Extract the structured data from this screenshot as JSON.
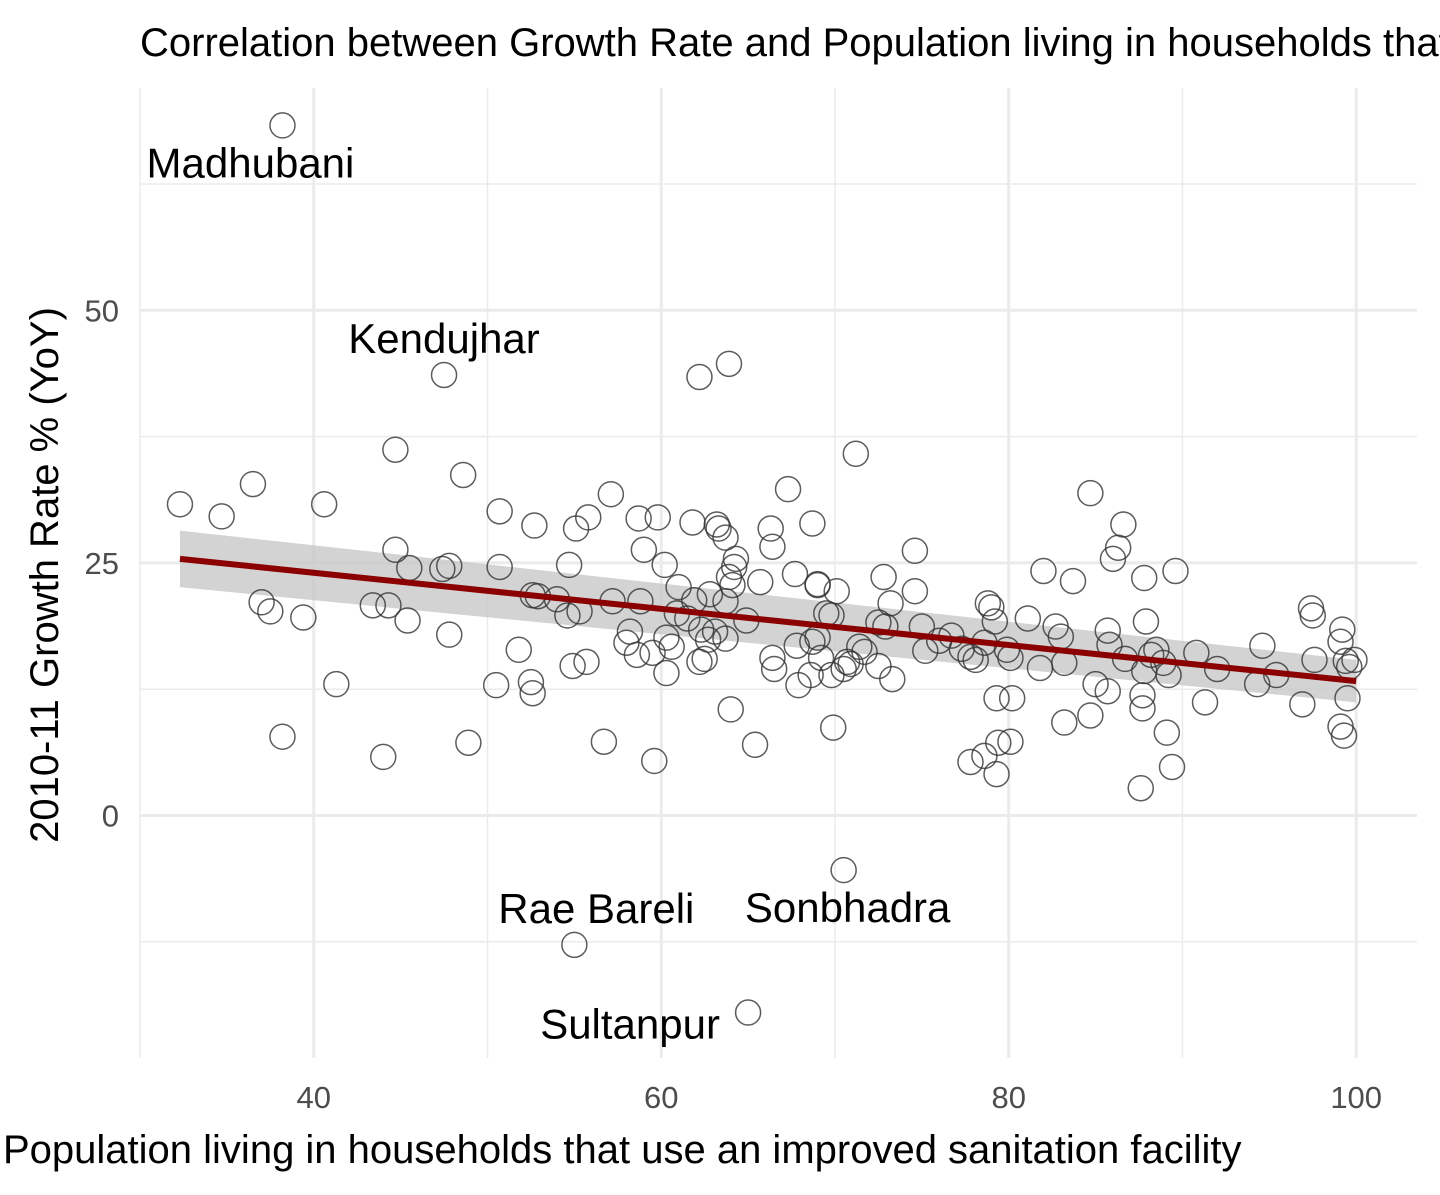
{
  "chart_data": {
    "type": "scatter",
    "title": "Correlation between Growth Rate and Population living in households that use an improved sanitation facility",
    "xlabel": "Population living in households that use an improved sanitation facility",
    "ylabel": "2010-11 Growth Rate % (YoY)",
    "xlim": [
      30,
      103.5
    ],
    "ylim": [
      -24,
      72
    ],
    "x_ticks": [
      "40",
      "60",
      "80",
      "100"
    ],
    "y_ticks": [
      "0",
      "25",
      "50"
    ],
    "x_tick_values": [
      40,
      60,
      80,
      100
    ],
    "y_tick_values": [
      0,
      25,
      50
    ],
    "grid": true,
    "trend": {
      "method": "linear fit with confidence band",
      "color": "#8b0000",
      "band_color": "#c8c8c8",
      "x": [
        32.3,
        100
      ],
      "y": [
        25.4,
        13.3
      ],
      "band_lower": [
        22.6,
        11.2
      ],
      "band_upper": [
        28.2,
        15.4
      ]
    },
    "point_style": {
      "marker": "open circle",
      "color": "#333333"
    },
    "labels": [
      {
        "text": "Madhubani",
        "x": 38.2,
        "y": 68.3
      },
      {
        "text": "Kendujhar",
        "x": 47.5,
        "y": 43.6
      },
      {
        "text": "Rae Bareli",
        "x": 55.0,
        "y": -12.8
      },
      {
        "text": "Sonbhadra",
        "x": 70.5,
        "y": -5.4
      },
      {
        "text": "Sultanpur",
        "x": 65.0,
        "y": -19.5
      }
    ],
    "points": [
      [
        38.2,
        68.3
      ],
      [
        47.5,
        43.6
      ],
      [
        62.2,
        43.4
      ],
      [
        63.9,
        44.7
      ],
      [
        44.7,
        36.2
      ],
      [
        48.6,
        33.7
      ],
      [
        71.2,
        35.8
      ],
      [
        32.3,
        30.8
      ],
      [
        34.7,
        29.6
      ],
      [
        36.5,
        32.8
      ],
      [
        40.6,
        30.8
      ],
      [
        50.7,
        30.1
      ],
      [
        52.7,
        28.7
      ],
      [
        57.1,
        31.8
      ],
      [
        55.8,
        29.5
      ],
      [
        58.7,
        29.4
      ],
      [
        59.8,
        29.5
      ],
      [
        61.8,
        29.0
      ],
      [
        63.2,
        28.8
      ],
      [
        67.3,
        32.3
      ],
      [
        68.7,
        28.9
      ],
      [
        84.7,
        31.9
      ],
      [
        86.6,
        28.8
      ],
      [
        55.1,
        28.4
      ],
      [
        63.3,
        28.4
      ],
      [
        66.3,
        28.4
      ],
      [
        66.4,
        26.6
      ],
      [
        63.7,
        27.5
      ],
      [
        74.6,
        26.2
      ],
      [
        86.3,
        26.5
      ],
      [
        86.0,
        25.4
      ],
      [
        59.0,
        26.3
      ],
      [
        44.7,
        26.3
      ],
      [
        47.8,
        24.7
      ],
      [
        47.4,
        24.4
      ],
      [
        45.5,
        24.5
      ],
      [
        50.7,
        24.6
      ],
      [
        54.7,
        24.8
      ],
      [
        60.2,
        24.8
      ],
      [
        64.2,
        24.6
      ],
      [
        64.3,
        25.4
      ],
      [
        67.7,
        23.9
      ],
      [
        82.0,
        24.2
      ],
      [
        83.7,
        23.2
      ],
      [
        87.8,
        23.5
      ],
      [
        89.6,
        24.2
      ],
      [
        63.9,
        23.6
      ],
      [
        64.1,
        22.8
      ],
      [
        65.7,
        23.1
      ],
      [
        69.0,
        22.9
      ],
      [
        69.0,
        22.8
      ],
      [
        70.1,
        22.2
      ],
      [
        72.8,
        23.6
      ],
      [
        74.6,
        22.2
      ],
      [
        61.0,
        22.6
      ],
      [
        52.6,
        21.8
      ],
      [
        52.9,
        21.7
      ],
      [
        54.0,
        21.4
      ],
      [
        57.2,
        21.2
      ],
      [
        58.8,
        21.2
      ],
      [
        61.9,
        21.3
      ],
      [
        62.8,
        21.9
      ],
      [
        63.7,
        21.2
      ],
      [
        73.2,
        21.0
      ],
      [
        37.0,
        21.1
      ],
      [
        37.5,
        20.2
      ],
      [
        39.4,
        19.6
      ],
      [
        43.4,
        20.8
      ],
      [
        44.3,
        20.8
      ],
      [
        45.4,
        19.3
      ],
      [
        47.8,
        17.9
      ],
      [
        54.6,
        19.8
      ],
      [
        55.3,
        20.2
      ],
      [
        60.9,
        20.0
      ],
      [
        61.5,
        19.5
      ],
      [
        62.3,
        18.4
      ],
      [
        63.1,
        18.2
      ],
      [
        64.9,
        19.3
      ],
      [
        69.5,
        20.0
      ],
      [
        69.8,
        19.8
      ],
      [
        72.5,
        19.1
      ],
      [
        72.9,
        18.7
      ],
      [
        75.0,
        18.7
      ],
      [
        76.7,
        17.8
      ],
      [
        78.8,
        21.0
      ],
      [
        79.0,
        20.6
      ],
      [
        79.2,
        19.2
      ],
      [
        81.1,
        19.5
      ],
      [
        82.7,
        18.7
      ],
      [
        83.0,
        17.7
      ],
      [
        85.7,
        18.3
      ],
      [
        88.5,
        16.4
      ],
      [
        87.9,
        19.2
      ],
      [
        97.4,
        20.5
      ],
      [
        97.5,
        19.8
      ],
      [
        99.2,
        18.4
      ],
      [
        99.1,
        17.2
      ],
      [
        58.2,
        18.2
      ],
      [
        58.0,
        17.1
      ],
      [
        58.6,
        15.9
      ],
      [
        59.5,
        16.1
      ],
      [
        60.3,
        17.6
      ],
      [
        60.6,
        16.7
      ],
      [
        62.2,
        15.2
      ],
      [
        62.5,
        15.5
      ],
      [
        62.7,
        17.4
      ],
      [
        63.7,
        17.5
      ],
      [
        66.4,
        15.6
      ],
      [
        66.5,
        14.5
      ],
      [
        67.8,
        16.8
      ],
      [
        68.7,
        17.2
      ],
      [
        69.0,
        17.6
      ],
      [
        69.2,
        15.6
      ],
      [
        70.7,
        15.2
      ],
      [
        70.9,
        15.0
      ],
      [
        71.4,
        16.7
      ],
      [
        71.7,
        16.2
      ],
      [
        72.5,
        14.8
      ],
      [
        73.3,
        13.5
      ],
      [
        75.2,
        16.3
      ],
      [
        76.0,
        17.3
      ],
      [
        77.3,
        16.5
      ],
      [
        77.8,
        15.7
      ],
      [
        78.6,
        17.1
      ],
      [
        79.9,
        16.4
      ],
      [
        80.1,
        15.6
      ],
      [
        81.8,
        14.6
      ],
      [
        83.2,
        15.1
      ],
      [
        85.8,
        16.9
      ],
      [
        86.7,
        15.5
      ],
      [
        87.8,
        14.3
      ],
      [
        88.2,
        15.9
      ],
      [
        88.9,
        15.1
      ],
      [
        89.2,
        13.9
      ],
      [
        92.0,
        14.5
      ],
      [
        94.3,
        13.0
      ],
      [
        95.4,
        13.9
      ],
      [
        96.9,
        11.0
      ],
      [
        97.6,
        15.4
      ],
      [
        99.4,
        15.3
      ],
      [
        99.6,
        14.7
      ],
      [
        99.9,
        15.4
      ],
      [
        99.5,
        11.6
      ],
      [
        90.8,
        16.1
      ],
      [
        94.6,
        16.8
      ],
      [
        99.1,
        8.8
      ],
      [
        99.3,
        7.9
      ],
      [
        48.9,
        7.2
      ],
      [
        56.7,
        7.3
      ],
      [
        65.4,
        7.0
      ],
      [
        69.9,
        8.7
      ],
      [
        44.0,
        5.8
      ],
      [
        38.2,
        7.8
      ],
      [
        59.6,
        5.4
      ],
      [
        52.5,
        13.2
      ],
      [
        52.6,
        12.1
      ],
      [
        50.5,
        12.9
      ],
      [
        51.8,
        16.4
      ],
      [
        41.3,
        13.0
      ],
      [
        54.9,
        14.8
      ],
      [
        55.7,
        15.2
      ],
      [
        60.3,
        14.1
      ],
      [
        64.0,
        10.5
      ],
      [
        67.9,
        12.9
      ],
      [
        68.6,
        13.9
      ],
      [
        69.8,
        13.9
      ],
      [
        70.5,
        14.5
      ],
      [
        78.1,
        15.4
      ],
      [
        79.3,
        11.6
      ],
      [
        80.2,
        11.6
      ],
      [
        79.4,
        7.2
      ],
      [
        80.1,
        7.3
      ],
      [
        77.8,
        5.3
      ],
      [
        78.6,
        5.9
      ],
      [
        79.3,
        4.1
      ],
      [
        83.2,
        9.2
      ],
      [
        84.7,
        9.9
      ],
      [
        85.0,
        13.0
      ],
      [
        85.7,
        12.3
      ],
      [
        87.7,
        11.9
      ],
      [
        87.7,
        10.6
      ],
      [
        89.1,
        8.2
      ],
      [
        89.4,
        4.8
      ],
      [
        91.3,
        11.2
      ],
      [
        87.6,
        2.7
      ],
      [
        70.5,
        -5.4
      ],
      [
        55.0,
        -12.8
      ],
      [
        65.0,
        -19.5
      ]
    ]
  }
}
